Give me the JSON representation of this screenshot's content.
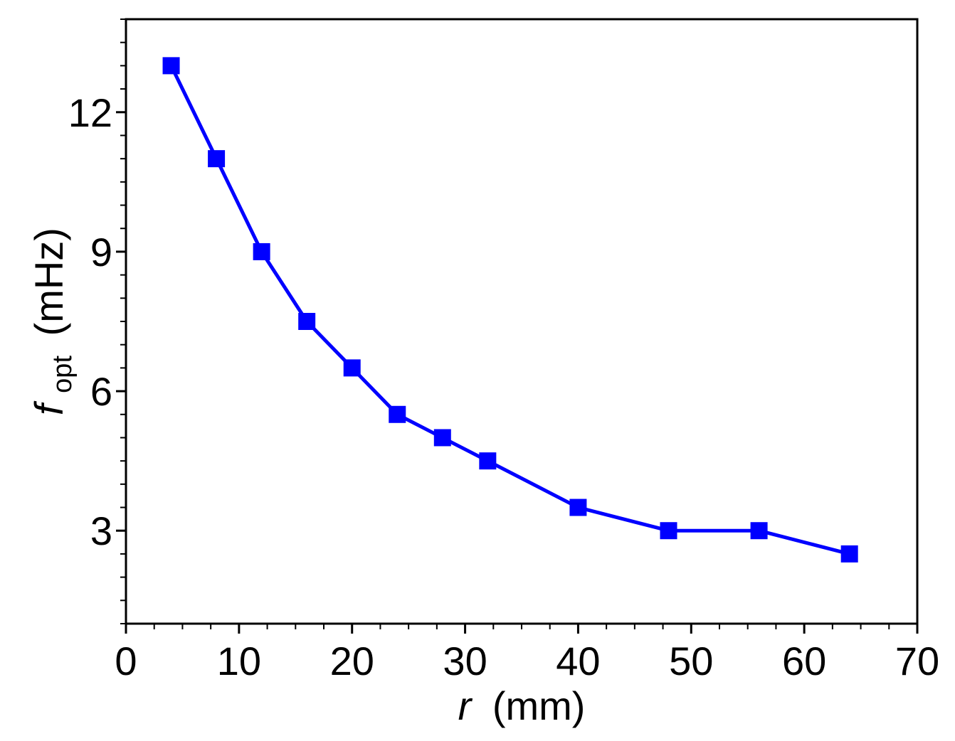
{
  "chart_data": {
    "type": "line",
    "xlabel_var": "r",
    "xlabel_unit": "(mm)",
    "ylabel_var": "f",
    "ylabel_sub": "opt",
    "ylabel_unit": "(mHz)",
    "xlim": [
      0,
      70
    ],
    "ylim": [
      1,
      14
    ],
    "x_ticks": [
      0,
      10,
      20,
      30,
      40,
      50,
      60,
      70
    ],
    "x_tick_labels": [
      "0",
      "10",
      "20",
      "30",
      "40",
      "50",
      "60",
      "70"
    ],
    "y_ticks": [
      3,
      6,
      9,
      12
    ],
    "y_tick_labels": [
      "3",
      "6",
      "9",
      "12"
    ],
    "grid": false,
    "series": [
      {
        "color": "#0000ff",
        "marker": "square",
        "x": [
          4,
          8,
          12,
          16,
          20,
          24,
          28,
          32,
          40,
          48,
          56,
          64
        ],
        "y": [
          13,
          11,
          9,
          7.5,
          6.5,
          5.5,
          5,
          4.5,
          3.5,
          3,
          3,
          2.5
        ]
      }
    ]
  }
}
